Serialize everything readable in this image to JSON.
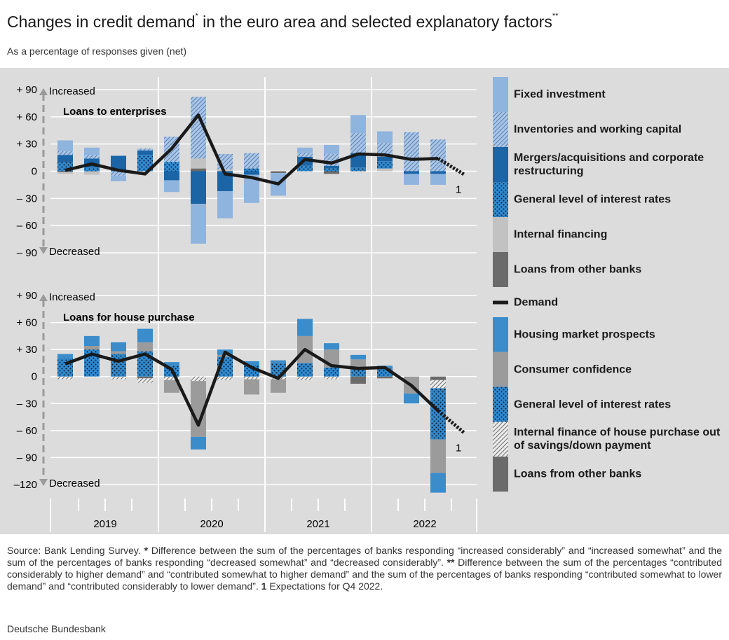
{
  "title": "Changes in credit demand",
  "title_note": "*",
  "title_end": "in the euro area and selected explanatory factors",
  "title_end_note": "**",
  "subtitle": "As a percentage of responses given (net)",
  "chart_data": [
    {
      "type": "bar",
      "stacked": true,
      "title": "Loans to enterprises",
      "increased": "Increased",
      "decreased": "Decreased",
      "expectation_note": "1",
      "categories": [
        null,
        null,
        null,
        null,
        null,
        null,
        null,
        null,
        null,
        null,
        null,
        null,
        null,
        null,
        null,
        null
      ],
      "ylim": [
        -90,
        90
      ],
      "yticks": [
        {
          "value": 90,
          "label": "+ 90"
        },
        {
          "value": 60,
          "label": "+ 60"
        },
        {
          "value": 30,
          "label": "+ 30"
        },
        0,
        {
          "value": -30,
          "label": "– 30"
        },
        {
          "value": -60,
          "label": "– 60"
        },
        {
          "value": -90,
          "label": "– 90"
        }
      ],
      "grid": true,
      "series": [
        {
          "name": "Fixed investment",
          "color": "#8fb4de",
          "values": [
            12,
            8,
            -6,
            0,
            -13,
            -44,
            -30,
            -31,
            -25,
            6,
            10,
            20,
            13,
            -12,
            -12,
            null
          ]
        },
        {
          "name": "Inventories and working capital",
          "color": "#a9c6e6",
          "pattern": "hatch",
          "hatch_color": "#5a7fae",
          "values": [
            4,
            4,
            -5,
            2,
            28,
            68,
            17,
            17,
            0,
            4,
            13,
            22,
            15,
            43,
            35,
            null
          ]
        },
        {
          "name": "Mergers/acquisitions and corporate restructuring",
          "color": "#1b64a6",
          "values": [
            8,
            10,
            17,
            5,
            -10,
            -36,
            -22,
            -4,
            0,
            10,
            3,
            16,
            5,
            -3,
            -3,
            null
          ]
        },
        {
          "name": "General level of interest rates",
          "color": "#2f8ad0",
          "pattern": "dots",
          "hatch_color": "#0d1a2a",
          "values": [
            10,
            4,
            0,
            18,
            10,
            0,
            0,
            3,
            0,
            6,
            3,
            4,
            8,
            0,
            0,
            null
          ]
        },
        {
          "name": "Internal financing",
          "color": "#c2c2c2",
          "values": [
            -2,
            -4,
            0,
            0,
            0,
            11,
            2,
            0,
            0,
            0,
            0,
            0,
            3,
            0,
            0,
            null
          ]
        },
        {
          "name": "Loans from other banks",
          "color": "#6b6b6b",
          "values": [
            -1,
            0,
            0,
            0,
            0,
            3,
            0,
            0,
            -2,
            0,
            -3,
            0,
            0,
            0,
            0,
            null
          ]
        }
      ],
      "line": {
        "name": "Demand",
        "color": "#1a1a1a",
        "values": [
          1,
          8,
          1,
          -3,
          25,
          62,
          -3,
          -7,
          -14,
          13,
          9,
          19,
          18,
          13,
          14,
          -4
        ]
      }
    },
    {
      "type": "bar",
      "stacked": true,
      "title": "Loans for house purchase",
      "increased": "Increased",
      "decreased": "Decreased",
      "expectation_note": "1",
      "categories": [
        null,
        null,
        null,
        null,
        null,
        null,
        null,
        null,
        null,
        null,
        null,
        null,
        null,
        null,
        null,
        null
      ],
      "x_groups": [
        "2019",
        "2020",
        "2021",
        "2022"
      ],
      "ylim": [
        -120,
        90
      ],
      "yticks": [
        {
          "value": 90,
          "label": "+  90"
        },
        {
          "value": 60,
          "label": "+  60"
        },
        {
          "value": 30,
          "label": "+  30"
        },
        0,
        {
          "value": -30,
          "label": "–  30"
        },
        {
          "value": -60,
          "label": "–  60"
        },
        {
          "value": -90,
          "label": "–  90"
        },
        {
          "value": -120,
          "label": "–120"
        }
      ],
      "grid": true,
      "series": [
        {
          "name": "Housing market prospects",
          "color": "#3a8cca",
          "values": [
            5,
            11,
            10,
            15,
            4,
            -14,
            6,
            4,
            3,
            19,
            7,
            5,
            3,
            -11,
            -22,
            null
          ]
        },
        {
          "name": "Consumer confidence",
          "color": "#9b9b9b",
          "values": [
            0,
            4,
            3,
            10,
            -14,
            -62,
            2,
            -17,
            -15,
            30,
            20,
            9,
            0,
            -19,
            -37,
            null
          ]
        },
        {
          "name": "General level of interest rates",
          "color": "#2f8ad0",
          "pattern": "dots",
          "hatch_color": "#0d1a2a",
          "values": [
            20,
            30,
            25,
            28,
            12,
            0,
            22,
            13,
            15,
            15,
            10,
            10,
            9,
            0,
            -57,
            null
          ]
        },
        {
          "name": "Internal finance of house purchase out of savings/down payment",
          "color": "#ececec",
          "pattern": "hatch",
          "hatch_color": "#6e6e6e",
          "values": [
            -3,
            0,
            -3,
            -5,
            -4,
            -5,
            -4,
            -3,
            -3,
            -4,
            -3,
            0,
            0,
            0,
            -9,
            null
          ]
        },
        {
          "name": "Loans from other banks",
          "color": "#6b6b6b",
          "values": [
            0,
            0,
            0,
            -2,
            0,
            0,
            0,
            0,
            0,
            0,
            0,
            -8,
            -2,
            0,
            -4,
            null
          ]
        }
      ],
      "line": {
        "color": "#1a1a1a",
        "values": [
          14,
          25,
          17,
          25,
          8,
          -54,
          27,
          10,
          -2,
          30,
          12,
          9,
          10,
          -10,
          -38,
          -63
        ]
      }
    }
  ],
  "footnote": {
    "source": "Source: Bank Lending Survey.",
    "notes": [
      {
        "marker": "*",
        "text": "Difference between the sum of the percentages of banks responding “increased considerably” and “increased somewhat” and the sum of the percentages of banks responding “decreased somewhat” and “decreased considerably”."
      },
      {
        "marker": "**",
        "text": "Difference between the sum of the percentages “contributed considerably to higher demand” and “contributed somewhat to higher demand” and the sum of the percentages of banks responding “contributed somewhat to lower demand” and “contributed considerably to lower demand”."
      },
      {
        "marker": "1",
        "text": "Expectations for Q4 2022."
      }
    ]
  },
  "publisher": "Deutsche Bundesbank"
}
